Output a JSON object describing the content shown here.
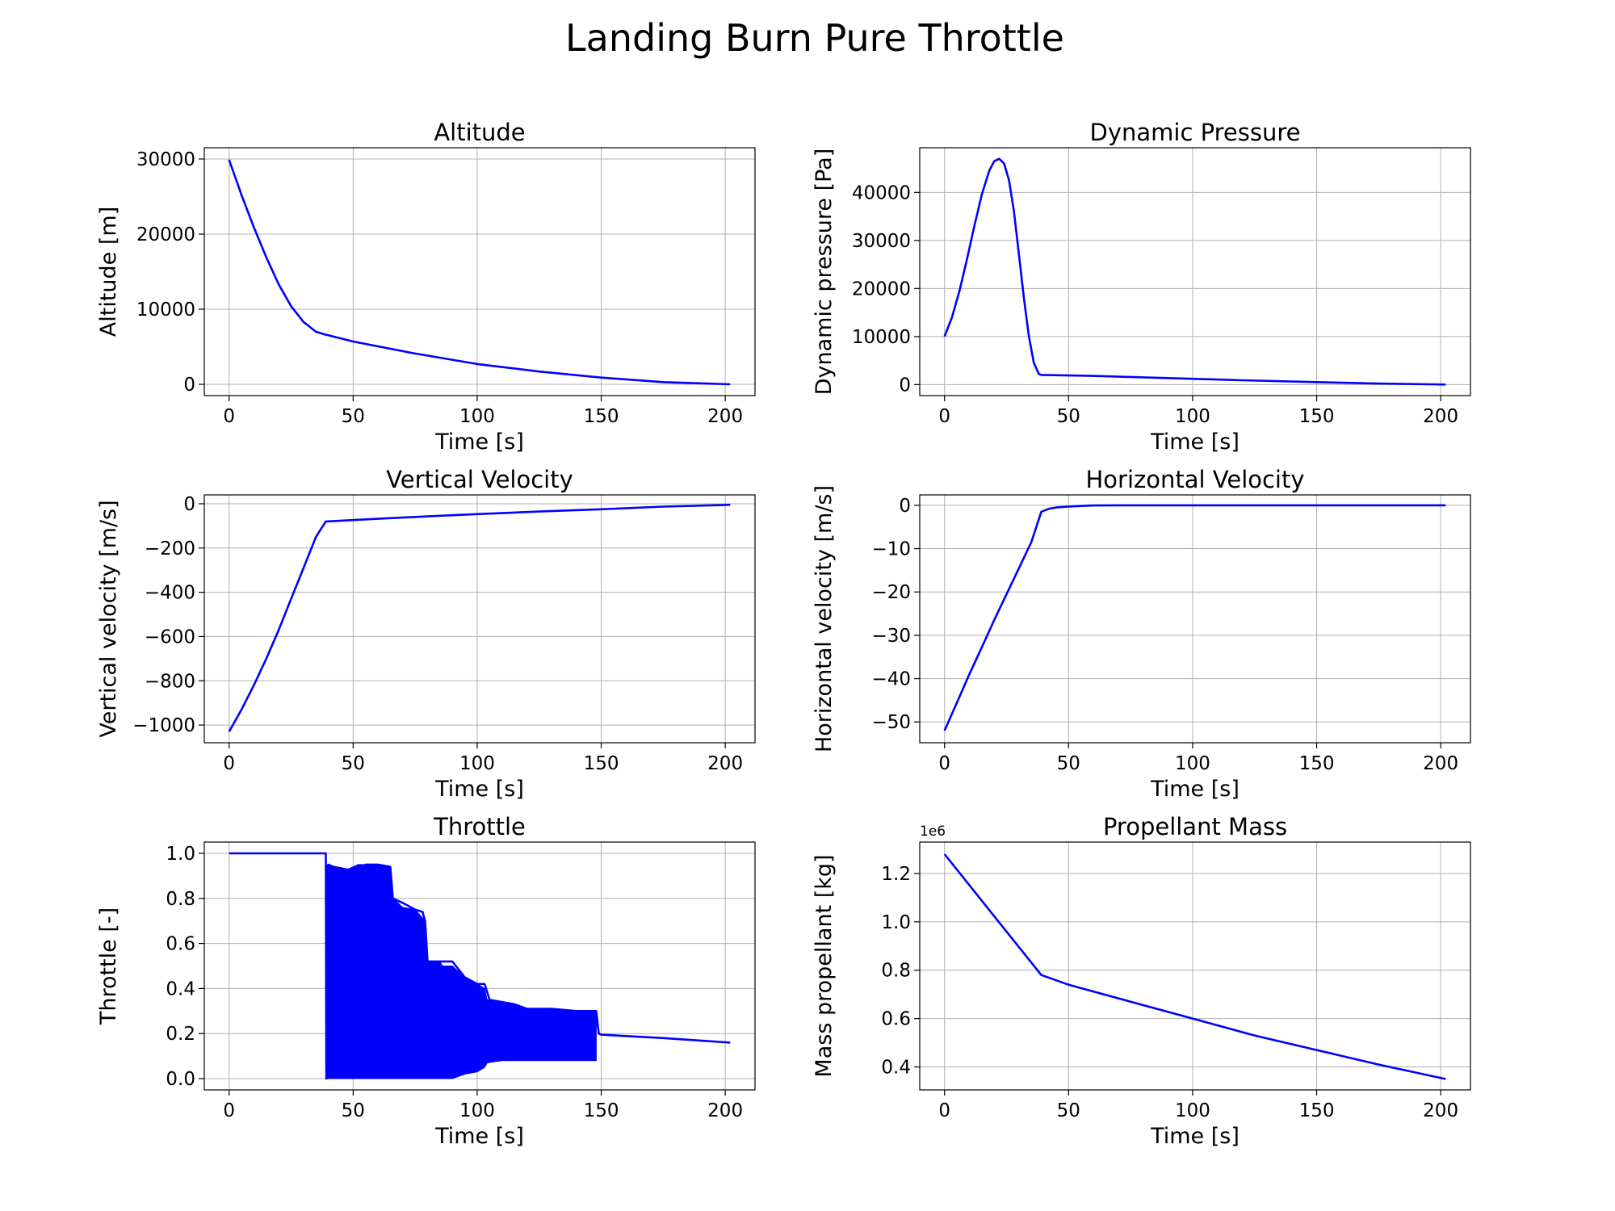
{
  "figure": {
    "title": "Landing Burn Pure Throttle",
    "line_color": "#0000ff"
  },
  "chart_data": [
    {
      "type": "line",
      "title": "Altitude",
      "xlabel": "Time [s]",
      "ylabel": "Altitude [m]",
      "xlim": [
        -10,
        212
      ],
      "ylim": [
        -1500,
        31500
      ],
      "xticks": [
        0,
        50,
        100,
        150,
        200
      ],
      "yticks": [
        0,
        10000,
        20000,
        30000
      ],
      "ytick_labels": [
        "0",
        "10000",
        "20000",
        "30000"
      ],
      "grid": true,
      "series": [
        {
          "x": [
            0,
            5,
            10,
            15,
            20,
            25,
            30,
            35,
            38,
            50,
            75,
            100,
            125,
            150,
            175,
            202
          ],
          "y": [
            29900,
            25200,
            20900,
            16900,
            13300,
            10400,
            8300,
            7000,
            6700,
            5700,
            4100,
            2700,
            1700,
            900,
            300,
            0
          ]
        }
      ]
    },
    {
      "type": "line",
      "title": "Dynamic Pressure",
      "xlabel": "Time [s]",
      "ylabel": "Dynamic pressure [Pa]",
      "xlim": [
        -10,
        212
      ],
      "ylim": [
        -2300,
        49300
      ],
      "xticks": [
        0,
        50,
        100,
        150,
        200
      ],
      "yticks": [
        0,
        10000,
        20000,
        30000,
        40000
      ],
      "ytick_labels": [
        "0",
        "10000",
        "20000",
        "30000",
        "40000"
      ],
      "grid": true,
      "series": [
        {
          "x": [
            0,
            3,
            6,
            9,
            12,
            15,
            18,
            20,
            22,
            24,
            26,
            28,
            30,
            32,
            34,
            36,
            38,
            39,
            60,
            80,
            100,
            120,
            150,
            175,
            202
          ],
          "y": [
            10000,
            14000,
            19500,
            26000,
            33000,
            39500,
            44500,
            46500,
            47000,
            46000,
            42500,
            36000,
            27000,
            18000,
            10000,
            4500,
            2200,
            2000,
            1800,
            1500,
            1200,
            900,
            500,
            200,
            0
          ]
        }
      ]
    },
    {
      "type": "line",
      "title": "Vertical Velocity",
      "xlabel": "Time [s]",
      "ylabel": "Vertical velocity [m/s]",
      "xlim": [
        -10,
        212
      ],
      "ylim": [
        -1080,
        40
      ],
      "xticks": [
        0,
        50,
        100,
        150,
        200
      ],
      "yticks": [
        -1000,
        -800,
        -600,
        -400,
        -200,
        0
      ],
      "ytick_labels": [
        "−1000",
        "−800",
        "−600",
        "−400",
        "−200",
        "0"
      ],
      "grid": true,
      "series": [
        {
          "x": [
            0,
            5,
            10,
            15,
            20,
            25,
            30,
            35,
            39,
            60,
            80,
            100,
            125,
            150,
            175,
            202
          ],
          "y": [
            -1030,
            -930,
            -820,
            -700,
            -570,
            -430,
            -290,
            -150,
            -80,
            -68,
            -57,
            -47,
            -35,
            -25,
            -13,
            -5
          ]
        }
      ]
    },
    {
      "type": "line",
      "title": "Horizontal Velocity",
      "xlabel": "Time [s]",
      "ylabel": "Horizontal velocity [m/s]",
      "xlim": [
        -10,
        212
      ],
      "ylim": [
        -54.8,
        2.4
      ],
      "xticks": [
        0,
        50,
        100,
        150,
        200
      ],
      "yticks": [
        -50,
        -40,
        -30,
        -20,
        -10,
        0
      ],
      "ytick_labels": [
        "−50",
        "−40",
        "−30",
        "−20",
        "−10",
        "0"
      ],
      "grid": true,
      "series": [
        {
          "x": [
            0,
            5,
            10,
            15,
            20,
            25,
            30,
            35,
            39,
            42,
            45,
            50,
            55,
            60,
            70,
            100,
            150,
            202
          ],
          "y": [
            -52,
            -45.5,
            -39,
            -32.8,
            -26.5,
            -20.5,
            -14.5,
            -8.5,
            -1.5,
            -0.8,
            -0.5,
            -0.3,
            -0.15,
            -0.05,
            0,
            0,
            0,
            0
          ]
        }
      ]
    },
    {
      "type": "line",
      "title": "Throttle",
      "xlabel": "Time [s]",
      "ylabel": "Throttle [-]",
      "xlim": [
        -10,
        212
      ],
      "ylim": [
        -0.05,
        1.05
      ],
      "xticks": [
        0,
        50,
        100,
        150,
        200
      ],
      "yticks": [
        0.0,
        0.2,
        0.4,
        0.6,
        0.8,
        1.0
      ],
      "ytick_labels": [
        "0.0",
        "0.2",
        "0.4",
        "0.6",
        "0.8",
        "1.0"
      ],
      "grid": true,
      "series": [
        {
          "x": [
            0,
            39,
            39.2,
            40,
            50,
            55,
            60,
            65,
            66,
            70,
            75,
            78,
            79,
            80,
            85,
            90,
            95,
            100,
            103,
            105,
            110,
            115,
            120,
            130,
            140,
            148,
            149,
            150,
            175,
            202
          ],
          "y": [
            1.0,
            1.0,
            0.0,
            0.95,
            0.9,
            0.95,
            0.95,
            0.94,
            0.8,
            0.78,
            0.75,
            0.74,
            0.7,
            0.52,
            0.52,
            0.52,
            0.45,
            0.42,
            0.42,
            0.35,
            0.34,
            0.33,
            0.31,
            0.31,
            0.3,
            0.3,
            0.2,
            0.195,
            0.18,
            0.16
          ]
        }
      ],
      "band": {
        "x": [
          39,
          48,
          50,
          52,
          55,
          60,
          65,
          66,
          70,
          75,
          79,
          80,
          85,
          86,
          90,
          95,
          100,
          103,
          104,
          110,
          115,
          120,
          125,
          130,
          140,
          148
        ],
        "upper": [
          0.95,
          0.93,
          0.94,
          0.95,
          0.95,
          0.95,
          0.94,
          0.8,
          0.76,
          0.75,
          0.7,
          0.52,
          0.52,
          0.5,
          0.5,
          0.45,
          0.42,
          0.4,
          0.35,
          0.34,
          0.33,
          0.31,
          0.31,
          0.31,
          0.3,
          0.3
        ],
        "lower": [
          0.0,
          0.0,
          0.0,
          0.0,
          0.0,
          0.0,
          0.0,
          0.0,
          0.0,
          0.0,
          0.0,
          0.0,
          0.0,
          0.0,
          0.0,
          0.02,
          0.03,
          0.05,
          0.07,
          0.08,
          0.08,
          0.08,
          0.08,
          0.08,
          0.08,
          0.08
        ]
      }
    },
    {
      "type": "line",
      "title": "Propellant Mass",
      "xlabel": "Time [s]",
      "ylabel": "Mass propellant [kg]",
      "xlim": [
        -10,
        212
      ],
      "ylim": [
        0.305,
        1.33
      ],
      "xticks": [
        0,
        50,
        100,
        150,
        200
      ],
      "yticks": [
        0.4,
        0.6,
        0.8,
        1.0,
        1.2
      ],
      "ytick_labels": [
        "0.4",
        "0.6",
        "0.8",
        "1.0",
        "1.2"
      ],
      "offset_text": "1e6",
      "grid": true,
      "series": [
        {
          "x": [
            0,
            39,
            50,
            75,
            100,
            125,
            150,
            175,
            202
          ],
          "y": [
            1.28,
            0.78,
            0.74,
            0.67,
            0.6,
            0.53,
            0.47,
            0.41,
            0.35
          ]
        }
      ]
    }
  ]
}
